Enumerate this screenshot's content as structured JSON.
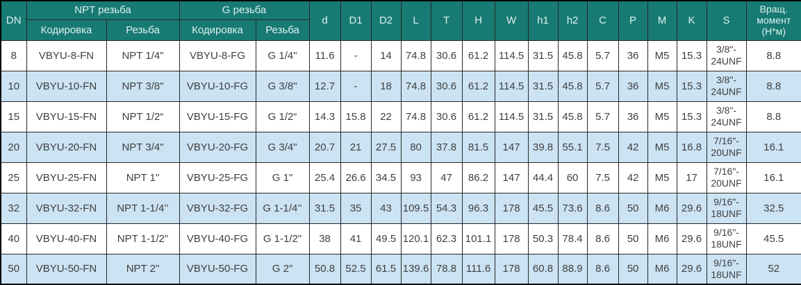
{
  "colors": {
    "header_bg": "#177A73",
    "header_text": "#DDF1F0",
    "row_alt_bg": "#CBE3F3",
    "row_bg": "#FFFFFF",
    "body_text": "#3F3F3F",
    "border": "#262626"
  },
  "table": {
    "header": {
      "dn": "DN",
      "npt_group": "NPT резьба",
      "g_group": "G резьба",
      "sub_labels": [
        "Кодировка",
        "Резьба",
        "Кодировка",
        "Резьба"
      ],
      "dims": [
        "d",
        "D1",
        "D2",
        "L",
        "T",
        "H",
        "W",
        "h1",
        "h2",
        "C",
        "P",
        "M",
        "K",
        "S"
      ],
      "torque": "Вращ.\nмомент\n(Н*м)"
    },
    "rows": [
      [
        "8",
        "VBYU-8-FN",
        "NPT 1/4\"",
        "VBYU-8-FG",
        "G 1/4\"",
        "11.6",
        "-",
        "14",
        "74.8",
        "30.6",
        "61.2",
        "114.5",
        "31.5",
        "45.8",
        "5.7",
        "36",
        "M5",
        "15.3",
        "3/8\"-\n24UNF",
        "8.8"
      ],
      [
        "10",
        "VBYU-10-FN",
        "NPT 3/8\"",
        "VBYU-10-FG",
        "G 3/8\"",
        "12.7",
        "-",
        "18",
        "74.8",
        "30.6",
        "61.2",
        "114.5",
        "31.5",
        "45.8",
        "5.7",
        "36",
        "M5",
        "15.3",
        "3/8\"-\n24UNF",
        "8.8"
      ],
      [
        "15",
        "VBYU-15-FN",
        "NPT 1/2“",
        "VBYU-15-FG",
        "G 1/2“",
        "14.3",
        "15.8",
        "22",
        "74.8",
        "30.6",
        "61.2",
        "114.5",
        "31.5",
        "45.8",
        "5.7",
        "36",
        "M5",
        "15.3",
        "3/8\"-\n24UNF",
        "8.8"
      ],
      [
        "20",
        "VBYU-20-FN",
        "NPT 3/4\"",
        "VBYU-20-FG",
        "G 3/4\"",
        "20.7",
        "21",
        "27.5",
        "80",
        "37.8",
        "81.5",
        "147",
        "39.8",
        "55.1",
        "7.5",
        "42",
        "M5",
        "16.8",
        "7/16\"-\n20UNF",
        "16.1"
      ],
      [
        "25",
        "VBYU-25-FN",
        "NPT 1\"",
        "VBYU-25-FG",
        "G 1\"",
        "25.4",
        "26.6",
        "34.5",
        "93",
        "47",
        "86.2",
        "147",
        "44.4",
        "60",
        "7.5",
        "42",
        "M5",
        "17",
        "7/16\"-\n20UNF",
        "16.1"
      ],
      [
        "32",
        "VBYU-32-FN",
        "NPT 1-1/4’’",
        "VBYU-32-FG",
        "G 1-1/4’’",
        "31.5",
        "35",
        "43",
        "109.5",
        "54.3",
        "96.3",
        "178",
        "45.5",
        "73.6",
        "8.6",
        "50",
        "M6",
        "29.6",
        "9/16\"-\n18UNF",
        "32.5"
      ],
      [
        "40",
        "VBYU-40-FN",
        "NPT 1-1/2\"",
        "VBYU-40-FG",
        "G 1-1/2\"",
        "38",
        "41",
        "49.5",
        "120.1",
        "62.3",
        "101.1",
        "178",
        "50.3",
        "78.4",
        "8.6",
        "50",
        "M6",
        "29.6",
        "9/16\"-\n18UNF",
        "45.5"
      ],
      [
        "50",
        "VBYU-50-FN",
        "NPT 2\"",
        "VBYU-50-FG",
        "G 2\"",
        "50.8",
        "52.5",
        "61.5",
        "139.6",
        "78.8",
        "111.6",
        "178",
        "60.8",
        "88.9",
        "8.6",
        "50",
        "M6",
        "29.6",
        "9/16\"-\n18UNF",
        "52"
      ]
    ]
  }
}
